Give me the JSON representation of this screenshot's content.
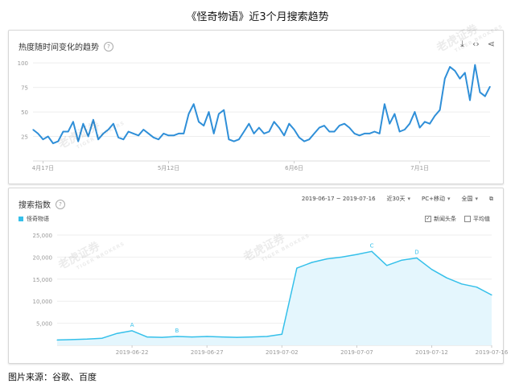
{
  "page": {
    "title": "《怪奇物语》近3个月搜索趋势",
    "caption": "图片来源：谷歌、百度"
  },
  "top_panel": {
    "title": "热度随时间变化的趋势",
    "tools": [
      "download-icon",
      "embed-icon",
      "share-icon"
    ]
  },
  "bottom_panel": {
    "title": "搜索指数",
    "date_range": "2019-06-17 ~ 2019-07-16",
    "period": "近30天",
    "device": "PC+移动",
    "region": "全国",
    "legend": "怪奇物语",
    "toggles": [
      {
        "label": "新闻头条",
        "checked": true
      },
      {
        "label": "平均值",
        "checked": false
      }
    ]
  },
  "watermark": {
    "text": "老虎证券",
    "sub": "TIGER BROKERS"
  },
  "colors": {
    "google_line": "#2f8fd8",
    "baidu_line": "#35c0ea",
    "baidu_fill": "#e4f6fd",
    "grid": "#eeeeee"
  },
  "chart_data": [
    {
      "type": "line",
      "source": "google",
      "x_ticks": [
        "4月17日",
        "5月12日",
        "6月6日",
        "7月1日"
      ],
      "x_tick_index": [
        2,
        27,
        52,
        77
      ],
      "ylim": [
        0,
        110
      ],
      "y_ticks": [
        25,
        50,
        75,
        100
      ],
      "grid": true,
      "values": [
        32,
        28,
        22,
        25,
        18,
        20,
        30,
        30,
        40,
        20,
        38,
        25,
        42,
        22,
        28,
        32,
        38,
        24,
        22,
        30,
        28,
        26,
        32,
        28,
        24,
        22,
        28,
        26,
        26,
        28,
        28,
        48,
        58,
        40,
        36,
        50,
        28,
        48,
        52,
        22,
        20,
        22,
        30,
        38,
        28,
        34,
        28,
        30,
        40,
        34,
        26,
        38,
        32,
        24,
        20,
        22,
        28,
        34,
        36,
        30,
        30,
        36,
        38,
        34,
        28,
        26,
        28,
        28,
        30,
        28,
        58,
        38,
        48,
        30,
        32,
        38,
        50,
        34,
        40,
        38,
        46,
        52,
        84,
        96,
        92,
        84,
        90,
        62,
        98,
        70,
        66,
        76
      ]
    },
    {
      "type": "area",
      "source": "baidu",
      "x_ticks": [
        "2019-06-22",
        "2019-06-27",
        "2019-07-02",
        "2019-07-07",
        "2019-07-12",
        "2019-07-16"
      ],
      "x_tick_index": [
        5,
        10,
        15,
        20,
        25,
        29
      ],
      "ylim": [
        0,
        25000
      ],
      "y_ticks": [
        5000,
        10000,
        15000,
        20000,
        25000
      ],
      "grid": true,
      "values": [
        1200,
        1300,
        1400,
        1600,
        2700,
        3300,
        1900,
        1800,
        2000,
        1900,
        2000,
        1900,
        1800,
        1900,
        2000,
        2500,
        17500,
        18800,
        19600,
        20000,
        20600,
        21300,
        18100,
        19300,
        19800,
        17200,
        15300,
        13900,
        13200,
        11400
      ],
      "annotations": [
        {
          "label": "A",
          "index": 5
        },
        {
          "label": "B",
          "index": 8
        },
        {
          "label": "C",
          "index": 21
        },
        {
          "label": "D",
          "index": 24
        }
      ]
    }
  ]
}
